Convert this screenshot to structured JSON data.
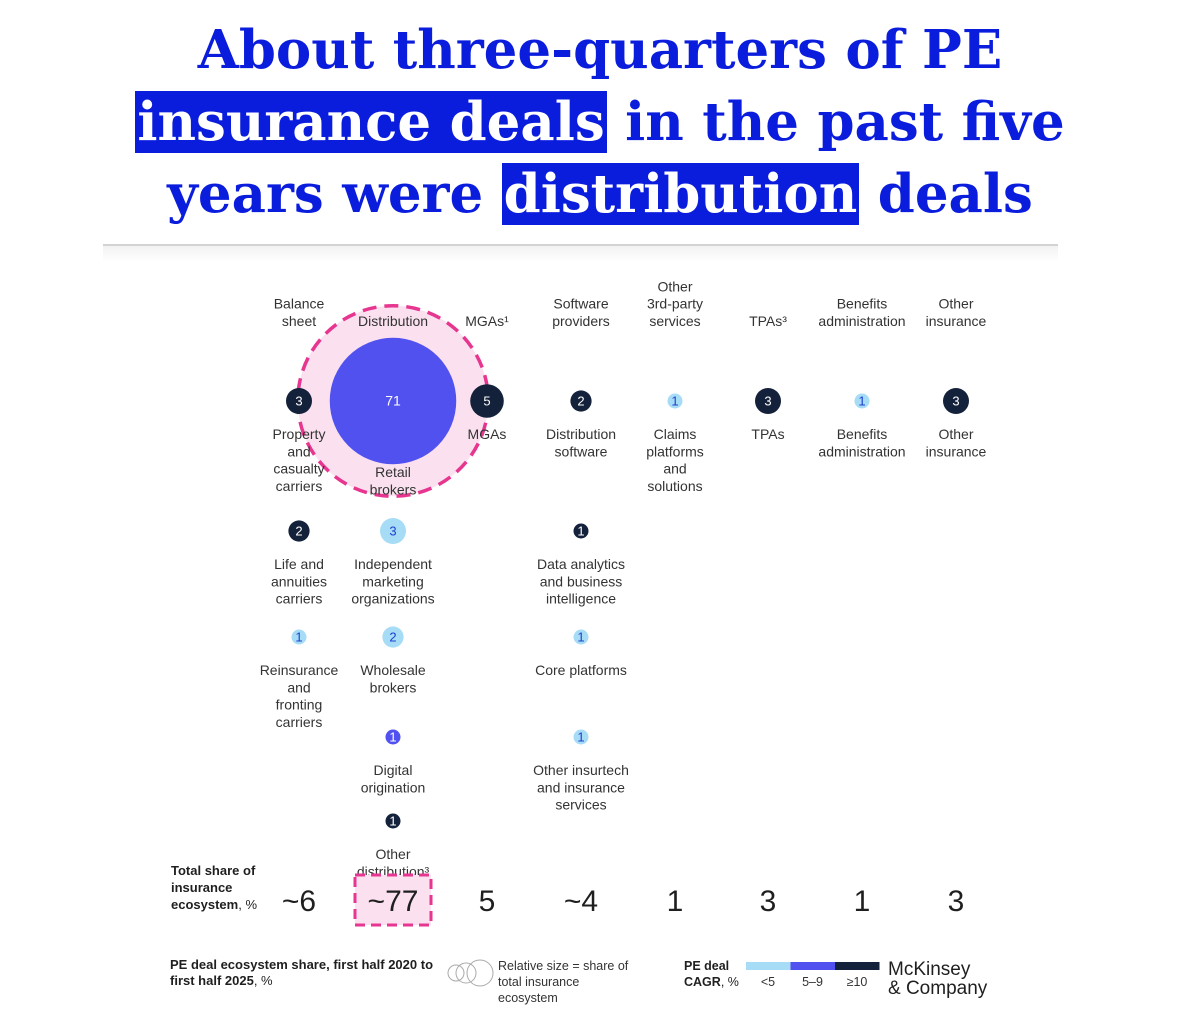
{
  "headline": {
    "line1": "About three-quarters of PE",
    "line2_hl": "insurance deals",
    "line2_rest": " in the past five",
    "line3_start": "years were ",
    "line3_hl": "distribution",
    "line3_end": " deals"
  },
  "colors": {
    "headline": "#0b1ddc",
    "cagr_low": "#a6dcf6",
    "cagr_mid": "#5151f0",
    "cagr_high": "#13213a",
    "highlight": "#e6368f",
    "highlight_fill": "#fbe1ef"
  },
  "chart_data": {
    "type": "bubble-matrix",
    "highlighted_column": "Distribution",
    "columns": [
      {
        "name": "Balance sheet",
        "total_share": "~6",
        "items": [
          {
            "label": "Property and casualty carriers",
            "value": 3,
            "cagr": "≥10"
          },
          {
            "label": "Life and annuities carriers",
            "value": 2,
            "cagr": "≥10"
          },
          {
            "label": "Reinsurance and fronting carriers",
            "value": 1,
            "cagr": "<5"
          }
        ]
      },
      {
        "name": "Distribution",
        "total_share": "~77",
        "items": [
          {
            "label": "Retail brokers",
            "value": 71,
            "cagr": "5–9"
          },
          {
            "label": "Independent marketing organizations",
            "value": 3,
            "cagr": "<5"
          },
          {
            "label": "Wholesale brokers",
            "value": 2,
            "cagr": "<5"
          },
          {
            "label": "Digital origination",
            "value": 1,
            "cagr": "5–9"
          },
          {
            "label": "Other distribution³",
            "value": 1,
            "cagr": "≥10"
          }
        ]
      },
      {
        "name": "MGAs¹",
        "total_share": "5",
        "items": [
          {
            "label": "MGAs",
            "value": 5,
            "cagr": "≥10"
          }
        ]
      },
      {
        "name": "Software providers",
        "total_share": "~4",
        "items": [
          {
            "label": "Distribution software",
            "value": 2,
            "cagr": "≥10"
          },
          {
            "label": "Data analytics and business intelligence",
            "value": 1,
            "cagr": "≥10"
          },
          {
            "label": "Core platforms",
            "value": 1,
            "cagr": "<5"
          },
          {
            "label": "Other insurtech and insurance services",
            "value": 1,
            "cagr": "<5"
          }
        ]
      },
      {
        "name": "Other 3rd-party services",
        "total_share": "1",
        "items": [
          {
            "label": "Claims platforms and solutions",
            "value": 1,
            "cagr": "<5"
          }
        ]
      },
      {
        "name": "TPAs³",
        "total_share": "3",
        "items": [
          {
            "label": "TPAs",
            "value": 3,
            "cagr": "≥10"
          }
        ]
      },
      {
        "name": "Benefits administration",
        "total_share": "1",
        "items": [
          {
            "label": "Benefits administration",
            "value": 1,
            "cagr": "<5"
          }
        ]
      },
      {
        "name": "Other insurance",
        "total_share": "3",
        "items": [
          {
            "label": "Other insurance",
            "value": 3,
            "cagr": "≥10"
          }
        ]
      }
    ],
    "total_share_label": "Total share of insurance ecosystem",
    "total_share_unit": ", %",
    "legend": {
      "size_note": "Relative size = share of total insurance ecosystem",
      "cagr_title": "PE deal CAGR",
      "cagr_unit": ", %",
      "cagr_bins": [
        "<5",
        "5–9",
        "≥10"
      ]
    },
    "subtitle_bold": "PE deal ecosystem share, first half 2020 to first half 2025",
    "subtitle_unit": ", %"
  },
  "footer": {
    "logo_line1": "McKinsey",
    "logo_line2": "& Company"
  }
}
